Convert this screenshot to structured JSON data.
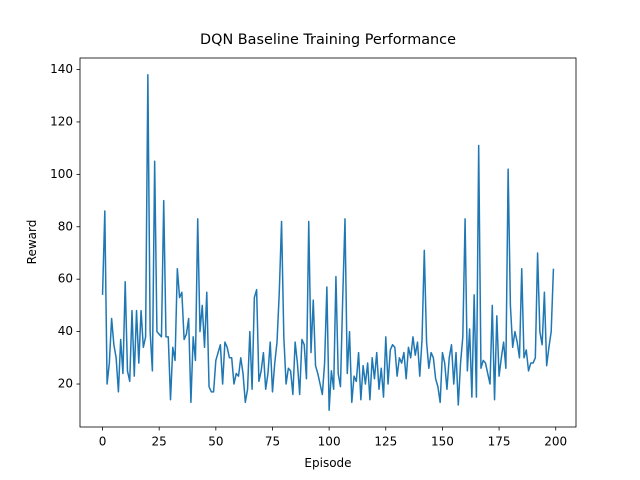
{
  "chart_data": {
    "type": "line",
    "title": "DQN Baseline Training Performance",
    "x_label": "Episode",
    "y_label": "Reward",
    "color": "#1f77b4",
    "x": [
      0,
      1,
      2,
      3,
      4,
      5,
      6,
      7,
      8,
      9,
      10,
      11,
      12,
      13,
      14,
      15,
      16,
      17,
      18,
      19,
      20,
      21,
      22,
      23,
      24,
      25,
      26,
      27,
      28,
      29,
      30,
      31,
      32,
      33,
      34,
      35,
      36,
      37,
      38,
      39,
      40,
      41,
      42,
      43,
      44,
      45,
      46,
      47,
      48,
      49,
      50,
      51,
      52,
      53,
      54,
      55,
      56,
      57,
      58,
      59,
      60,
      61,
      62,
      63,
      64,
      65,
      66,
      67,
      68,
      69,
      70,
      71,
      72,
      73,
      74,
      75,
      76,
      77,
      78,
      79,
      80,
      81,
      82,
      83,
      84,
      85,
      86,
      87,
      88,
      89,
      90,
      91,
      92,
      93,
      94,
      95,
      96,
      97,
      98,
      99,
      100,
      101,
      102,
      103,
      104,
      105,
      106,
      107,
      108,
      109,
      110,
      111,
      112,
      113,
      114,
      115,
      116,
      117,
      118,
      119,
      120,
      121,
      122,
      123,
      124,
      125,
      126,
      127,
      128,
      129,
      130,
      131,
      132,
      133,
      134,
      135,
      136,
      137,
      138,
      139,
      140,
      141,
      142,
      143,
      144,
      145,
      146,
      147,
      148,
      149,
      150,
      151,
      152,
      153,
      154,
      155,
      156,
      157,
      158,
      159,
      160,
      161,
      162,
      163,
      164,
      165,
      166,
      167,
      168,
      169,
      170,
      171,
      172,
      173,
      174,
      175,
      176,
      177,
      178,
      179,
      180,
      181,
      182,
      183,
      184,
      185,
      186,
      187,
      188,
      189,
      190,
      191,
      192,
      193,
      194,
      195,
      196,
      197,
      198,
      199
    ],
    "values": [
      54,
      86,
      20,
      28,
      45,
      35,
      30,
      17,
      37,
      24,
      59,
      25,
      21,
      48,
      23,
      48,
      28,
      48,
      34,
      38,
      138,
      40,
      25,
      105,
      40,
      39,
      38,
      90,
      38,
      38,
      14,
      34,
      29,
      64,
      53,
      55,
      37,
      39,
      45,
      13,
      38,
      29,
      83,
      40,
      50,
      34,
      55,
      19,
      17,
      17,
      29,
      32,
      35,
      20,
      36,
      34,
      30,
      30,
      20,
      24,
      23,
      30,
      24,
      13,
      18,
      40,
      18,
      53,
      56,
      21,
      25,
      32,
      18,
      24,
      36,
      17,
      28,
      36,
      55,
      82,
      38,
      20,
      26,
      25,
      16,
      36,
      28,
      16,
      37,
      35,
      22,
      82,
      32,
      52,
      27,
      24,
      20,
      16,
      28,
      57,
      10,
      25,
      18,
      61,
      24,
      19,
      53,
      83,
      24,
      40,
      13,
      23,
      21,
      32,
      14,
      27,
      20,
      28,
      14,
      30,
      22,
      32,
      18,
      26,
      15,
      38,
      20,
      33,
      35,
      34,
      23,
      30,
      28,
      32,
      22,
      34,
      30,
      38,
      31,
      36,
      23,
      37,
      71,
      36,
      26,
      32,
      30,
      22,
      19,
      13,
      32,
      28,
      18,
      30,
      35,
      20,
      32,
      12,
      28,
      38,
      83,
      25,
      41,
      15,
      54,
      15,
      111,
      26,
      29,
      28,
      24,
      20,
      50,
      14,
      46,
      23,
      30,
      36,
      26,
      102,
      50,
      34,
      40,
      36,
      30,
      64,
      30,
      33,
      25,
      28,
      28,
      30,
      70,
      40,
      35,
      55,
      27,
      34,
      40,
      64
    ],
    "xlim": [
      -9.95,
      208.95
    ],
    "ylim": [
      3.6,
      144.4
    ],
    "xticks": [
      0,
      25,
      50,
      75,
      100,
      125,
      150,
      175,
      200
    ],
    "yticks": [
      20,
      40,
      60,
      80,
      100,
      120,
      140
    ]
  }
}
